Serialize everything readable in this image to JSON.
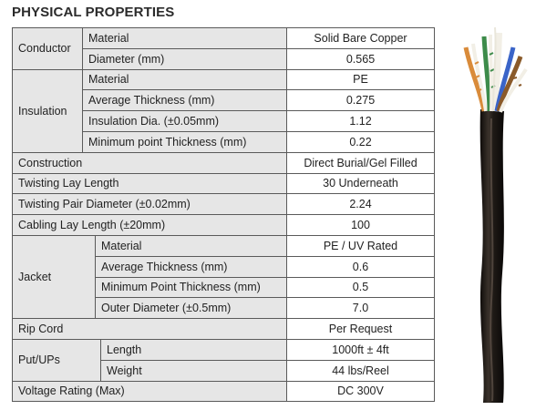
{
  "title": "PHYSICAL PROPERTIES",
  "conductor": {
    "group": "Conductor",
    "material": {
      "label": "Material",
      "value": "Solid Bare Copper"
    },
    "diameter": {
      "label": "Diameter (mm)",
      "value": "0.565"
    }
  },
  "insulation": {
    "group": "Insulation",
    "material": {
      "label": "Material",
      "value": "PE"
    },
    "avg_thickness": {
      "label": "Average Thickness (mm)",
      "value": "0.275"
    },
    "dia": {
      "label": "Insulation Dia. (±0.05mm)",
      "value": "1.12"
    },
    "min_thickness": {
      "label": "Minimum point Thickness (mm)",
      "value": "0.22"
    }
  },
  "construction": {
    "label": "Construction",
    "value": "Direct Burial/Gel Filled"
  },
  "twisting_lay": {
    "label": "Twisting Lay Length",
    "value": "30 Underneath"
  },
  "twisting_pair_dia": {
    "label": "Twisting Pair Diameter (±0.02mm)",
    "value": "2.24"
  },
  "cabling_lay": {
    "label": "Cabling Lay Length (±20mm)",
    "value": "100"
  },
  "jacket": {
    "group": "Jacket",
    "material": {
      "label": "Material",
      "value": "PE / UV Rated"
    },
    "avg_thickness": {
      "label": "Average Thickness (mm)",
      "value": "0.6"
    },
    "min_thickness": {
      "label": "Minimum Point Thickness (mm)",
      "value": "0.5"
    },
    "outer_dia": {
      "label": "Outer Diameter (±0.5mm)",
      "value": "7.0"
    }
  },
  "rip_cord": {
    "label": "Rip Cord",
    "value": "Per Request"
  },
  "put_ups": {
    "group": "Put/UPs",
    "length": {
      "label": "Length",
      "value": "1000ft ± 4ft"
    },
    "weight": {
      "label": "Weight",
      "value": "44 lbs/Reel"
    }
  },
  "voltage": {
    "label": "Voltage Rating (Max)",
    "value": "DC 300V"
  },
  "colors": {
    "label_bg": "#e6e6e6",
    "value_bg": "#ffffff",
    "border": "#5a5a5a",
    "jacket": "#1a1612"
  },
  "image": {
    "description_icon": "cable-photo-icon"
  }
}
